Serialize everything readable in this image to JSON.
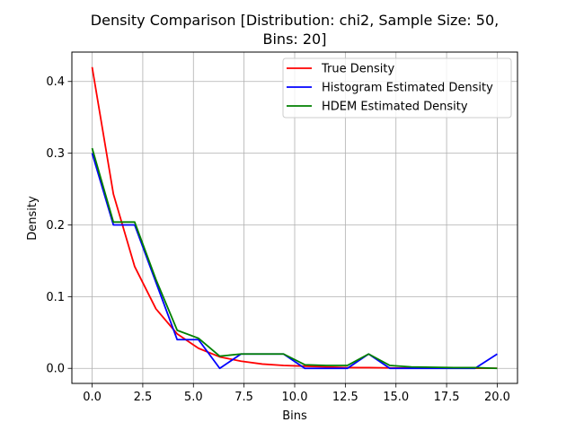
{
  "chart_data": {
    "type": "line",
    "title_lines": [
      "Density Comparison [Distribution: chi2, Sample Size: 50,",
      "Bins: 20]"
    ],
    "xlabel": "Bins",
    "ylabel": "Density",
    "xlim": [
      -1.0,
      21.0
    ],
    "ylim": [
      -0.021,
      0.441
    ],
    "xticks": [
      0.0,
      2.5,
      5.0,
      7.5,
      10.0,
      12.5,
      15.0,
      17.5,
      20.0
    ],
    "xtick_labels": [
      "0.0",
      "2.5",
      "5.0",
      "7.5",
      "10.0",
      "12.5",
      "15.0",
      "17.5",
      "20.0"
    ],
    "yticks": [
      0.0,
      0.1,
      0.2,
      0.3,
      0.4
    ],
    "ytick_labels": [
      "0.0",
      "0.1",
      "0.2",
      "0.3",
      "0.4"
    ],
    "grid": true,
    "legend_position": "top-right",
    "x": [
      0.0,
      1.05,
      2.1,
      3.15,
      4.2,
      5.25,
      6.3,
      7.35,
      8.4,
      9.45,
      10.5,
      11.55,
      12.6,
      13.65,
      14.7,
      15.75,
      16.8,
      17.85,
      18.9,
      20.0
    ],
    "series": [
      {
        "name": "True Density",
        "color": "#ff0000",
        "values": [
          0.42,
          0.243,
          0.142,
          0.083,
          0.048,
          0.028,
          0.016,
          0.01,
          0.006,
          0.004,
          0.003,
          0.002,
          0.001,
          0.001,
          0.0006,
          0.0004,
          0.0003,
          0.0002,
          0.0001,
          0.0001
        ]
      },
      {
        "name": "Histogram Estimated Density",
        "color": "#0000ff",
        "values": [
          0.3,
          0.2,
          0.2,
          0.12,
          0.04,
          0.04,
          0.0,
          0.02,
          0.02,
          0.02,
          0.0,
          0.0,
          0.0,
          0.02,
          0.0,
          0.0,
          0.0,
          0.0,
          0.0,
          0.02
        ]
      },
      {
        "name": "HDEM Estimated Density",
        "color": "#008000",
        "values": [
          0.307,
          0.204,
          0.204,
          0.124,
          0.053,
          0.042,
          0.017,
          0.02,
          0.02,
          0.02,
          0.005,
          0.004,
          0.004,
          0.02,
          0.004,
          0.002,
          0.0015,
          0.001,
          0.001,
          0.0
        ]
      }
    ]
  }
}
